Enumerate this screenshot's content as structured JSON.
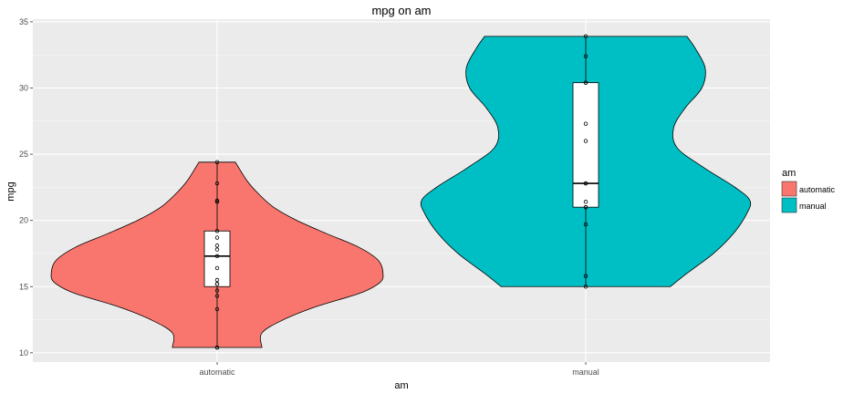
{
  "chart_data": {
    "type": "violin",
    "title": "mpg on am",
    "xlabel": "am",
    "ylabel": "mpg",
    "ylim": [
      9.3,
      35.2
    ],
    "y_ticks": [
      10,
      15,
      20,
      25,
      30,
      35
    ],
    "categories": [
      "automatic",
      "manual"
    ],
    "grid": true,
    "legend": {
      "title": "am",
      "placement": "right",
      "entries": [
        {
          "label": "automatic",
          "color": "#F8766D"
        },
        {
          "label": "manual",
          "color": "#00BFC4"
        }
      ]
    },
    "series": [
      {
        "category": "automatic",
        "color": "#F8766D",
        "points": [
          10.4,
          10.4,
          13.3,
          14.3,
          14.7,
          15.2,
          15.2,
          15.5,
          16.4,
          17.3,
          17.8,
          18.1,
          18.7,
          19.2,
          21.4,
          21.5,
          22.8,
          24.4
        ],
        "box": {
          "min": 10.4,
          "q1": 15.0,
          "median": 17.3,
          "q3": 19.2,
          "max": 24.4
        },
        "density": [
          [
            10.4,
            0.27
          ],
          [
            11.5,
            0.27
          ],
          [
            12.5,
            0.4
          ],
          [
            13.5,
            0.6
          ],
          [
            14.5,
            0.86
          ],
          [
            15.3,
            0.98
          ],
          [
            16.0,
            1.0
          ],
          [
            17.0,
            0.97
          ],
          [
            18.0,
            0.85
          ],
          [
            19.0,
            0.66
          ],
          [
            20.0,
            0.48
          ],
          [
            21.0,
            0.34
          ],
          [
            22.0,
            0.25
          ],
          [
            23.0,
            0.18
          ],
          [
            24.4,
            0.11
          ]
        ]
      },
      {
        "category": "manual",
        "color": "#00BFC4",
        "points": [
          15.0,
          15.8,
          19.7,
          21.0,
          21.0,
          21.4,
          22.8,
          22.8,
          26.0,
          27.3,
          30.4,
          30.4,
          32.4,
          33.9
        ],
        "box": {
          "min": 15.0,
          "q1": 21.0,
          "median": 22.8,
          "q3": 30.4,
          "max": 33.9
        },
        "density": [
          [
            15.0,
            0.51
          ],
          [
            16.0,
            0.61
          ],
          [
            17.5,
            0.77
          ],
          [
            19.0,
            0.89
          ],
          [
            20.5,
            0.97
          ],
          [
            21.5,
            0.99
          ],
          [
            22.5,
            0.9
          ],
          [
            24.0,
            0.71
          ],
          [
            25.5,
            0.55
          ],
          [
            27.0,
            0.53
          ],
          [
            28.5,
            0.6
          ],
          [
            30.0,
            0.7
          ],
          [
            31.5,
            0.72
          ],
          [
            33.0,
            0.66
          ],
          [
            33.9,
            0.61
          ]
        ]
      }
    ]
  }
}
